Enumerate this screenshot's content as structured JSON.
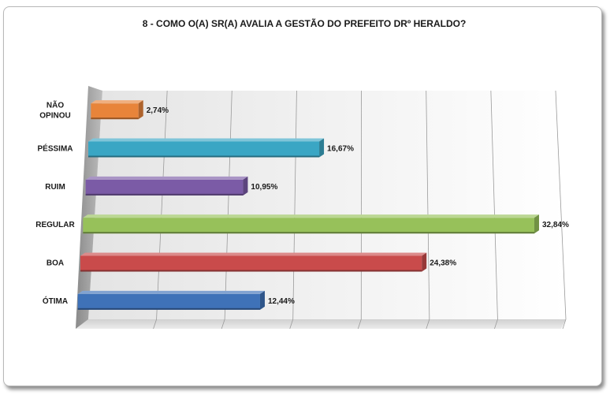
{
  "chart_data": {
    "type": "bar",
    "orientation": "horizontal",
    "title": "8 - COMO O(A) SR(A) AVALIA A GESTÃO DO PREFEITO DRº HERALDO?",
    "categories": [
      {
        "lines": [
          "NÃO",
          "OPINOU"
        ],
        "value": 2.74,
        "label": "2,74%",
        "color": "#e8843a"
      },
      {
        "lines": [
          "PÉSSIMA"
        ],
        "value": 16.67,
        "label": "16,67%",
        "color": "#3aa6c4"
      },
      {
        "lines": [
          "RUIM"
        ],
        "value": 10.95,
        "label": "10,95%",
        "color": "#7b5ba6"
      },
      {
        "lines": [
          "REGULAR"
        ],
        "value": 32.84,
        "label": "32,84%",
        "color": "#97c15a"
      },
      {
        "lines": [
          "BOA"
        ],
        "value": 24.38,
        "label": "24,38%",
        "color": "#c94b4b"
      },
      {
        "lines": [
          "ÓTIMA"
        ],
        "value": 12.44,
        "label": "12,44%",
        "color": "#3f72b8"
      }
    ],
    "xlim": [
      0,
      35
    ],
    "grid": true,
    "legend": "none"
  }
}
